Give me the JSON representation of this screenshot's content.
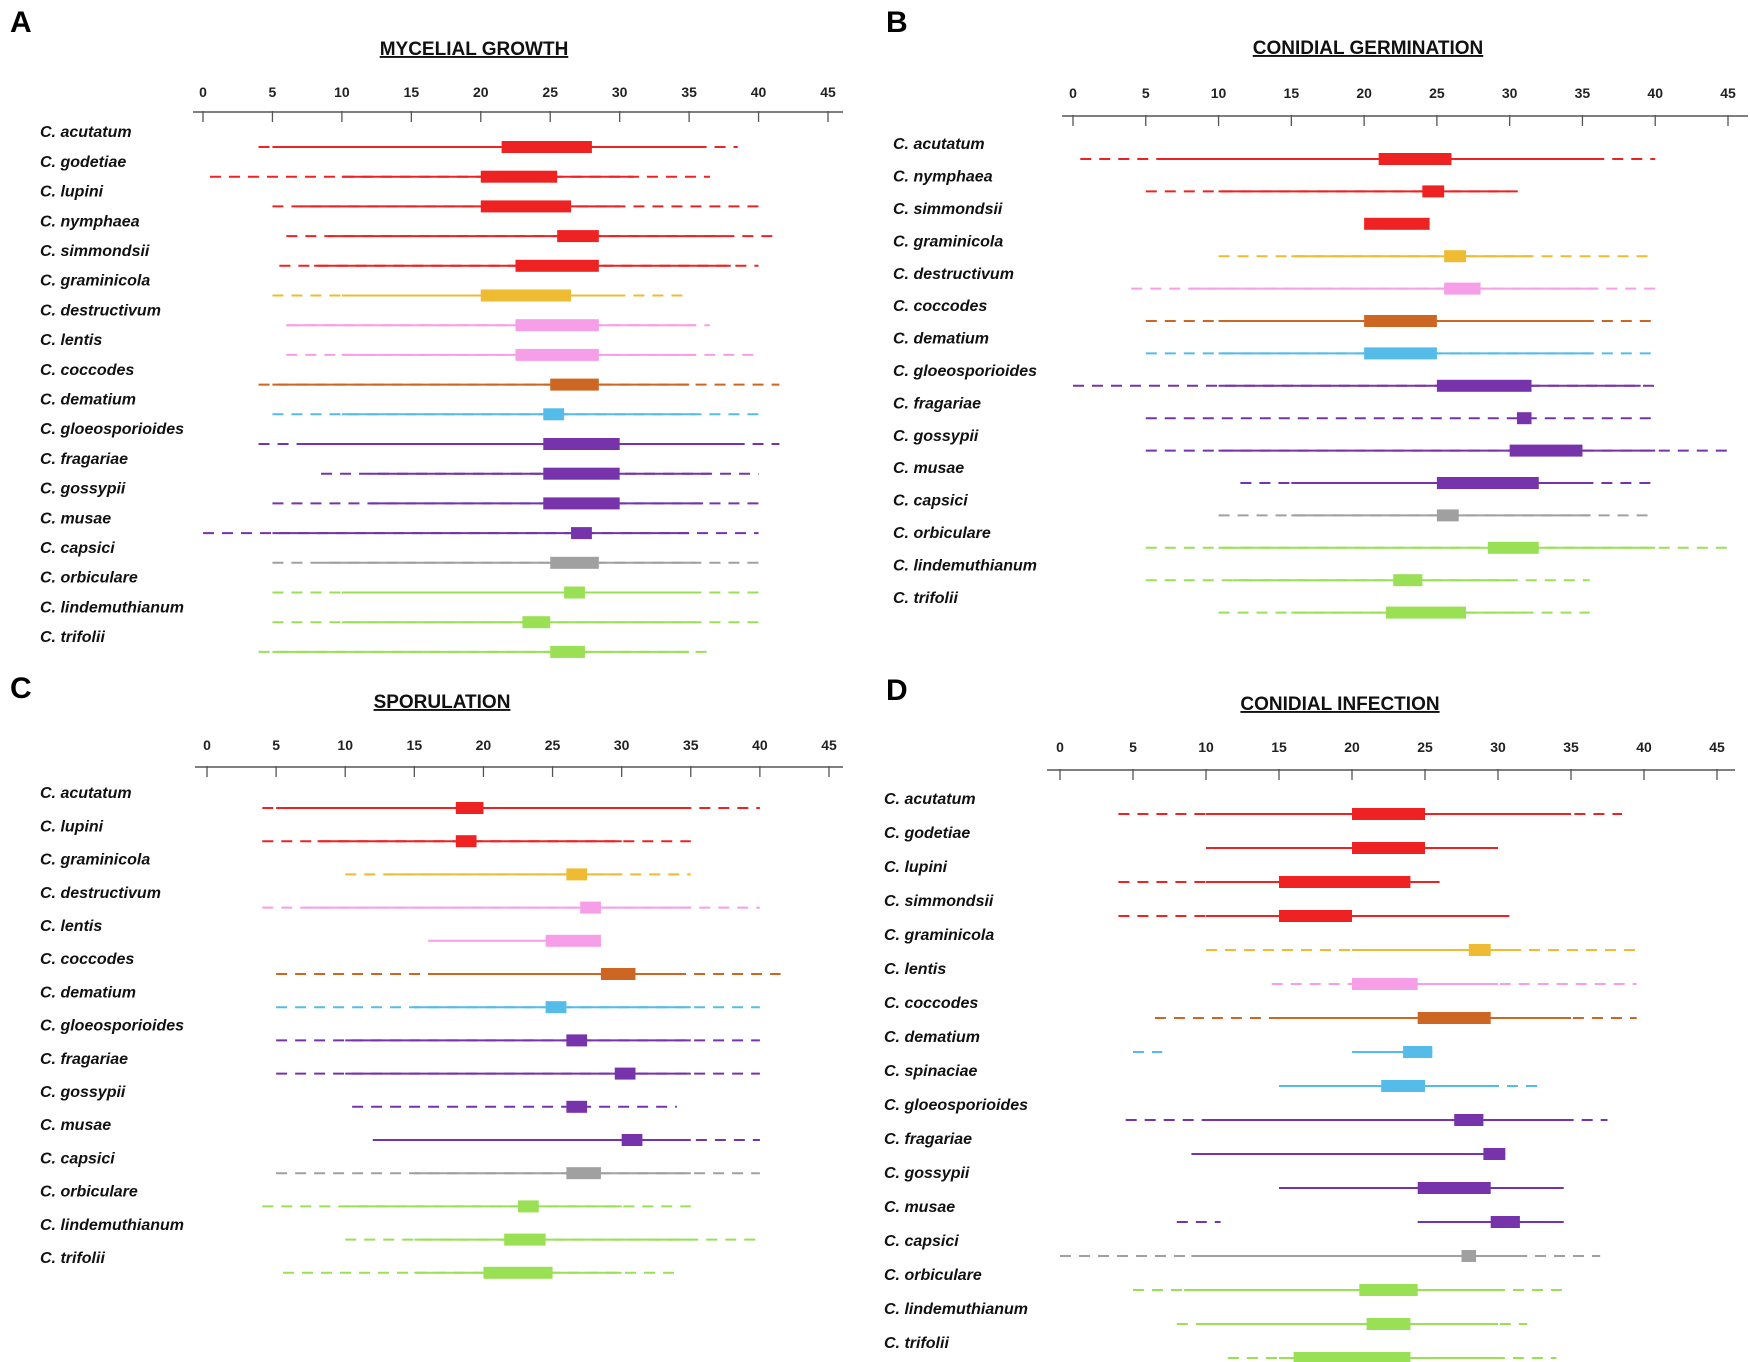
{
  "chart_data": [
    {
      "type": "range",
      "panel": "A",
      "title": "MYCELIAL GROWTH",
      "xlabel": "",
      "ylabel": "",
      "x_ticks": [
        0,
        5,
        10,
        15,
        20,
        25,
        30,
        35,
        40,
        45
      ],
      "xlim": [
        0,
        45
      ],
      "rows": [
        {
          "species": "C. acutatum",
          "color": "#ee2222",
          "dash": [
            4,
            38.5
          ],
          "line": [
            5,
            36
          ],
          "box": [
            21.5,
            28
          ]
        },
        {
          "species": "C. godetiae",
          "color": "#ee2222",
          "dash": [
            0.5,
            36.5
          ],
          "line": [
            10,
            31
          ],
          "box": [
            20,
            25.5
          ]
        },
        {
          "species": "C. lupini",
          "color": "#ee2222",
          "dash": [
            5,
            40
          ],
          "line": [
            7,
            30
          ],
          "box": [
            20,
            26.5
          ]
        },
        {
          "species": "C. nymphaea",
          "color": "#ee2222",
          "dash": [
            6,
            41.5
          ],
          "line": [
            9,
            37.5
          ],
          "box": [
            25.5,
            28.5
          ]
        },
        {
          "species": "C. simmondsii",
          "color": "#ee2222",
          "dash": [
            5.5,
            40
          ],
          "line": [
            8,
            38
          ],
          "box": [
            22.5,
            28.5
          ]
        },
        {
          "species": "C. graminicola",
          "color": "#eebb33",
          "dash": [
            5,
            35
          ],
          "line": [
            10,
            30
          ],
          "box": [
            20,
            26.5
          ]
        },
        {
          "species": "C. destructivum",
          "color": "#f79ee9",
          "dash": [
            6,
            36.5
          ],
          "line": [
            6,
            35.5
          ],
          "box": [
            22.5,
            28.5
          ]
        },
        {
          "species": "C. lentis",
          "color": "#f79ee9",
          "dash": [
            6,
            40
          ],
          "line": [
            10,
            35.5
          ],
          "box": [
            22.5,
            28.5
          ]
        },
        {
          "species": "C. coccodes",
          "color": "#cc6622",
          "dash": [
            4,
            41.5
          ],
          "line": [
            5,
            35
          ],
          "box": [
            25,
            28.5
          ]
        },
        {
          "species": "C. dematium",
          "color": "#55bbe8",
          "dash": [
            5,
            40
          ],
          "line": [
            10,
            35.5
          ],
          "box": [
            24.5,
            26
          ]
        },
        {
          "species": "C. gloeosporioides",
          "color": "#7733aa",
          "dash": [
            4,
            41.5
          ],
          "line": [
            7,
            39
          ],
          "box": [
            24.5,
            30
          ]
        },
        {
          "species": "C. fragariae",
          "color": "#7733aa",
          "dash": [
            8.5,
            40
          ],
          "line": [
            12,
            36.5
          ],
          "box": [
            24.5,
            30
          ]
        },
        {
          "species": "C. gossypii",
          "color": "#7733aa",
          "dash": [
            5,
            40
          ],
          "line": [
            12,
            36
          ],
          "box": [
            24.5,
            30
          ]
        },
        {
          "species": "C. musae",
          "color": "#7733aa",
          "dash": [
            0,
            40
          ],
          "line": [
            5,
            35
          ],
          "box": [
            26.5,
            28
          ]
        },
        {
          "species": "C. capsici",
          "color": "#a0a0a0",
          "dash": [
            5,
            40
          ],
          "line": [
            8.5,
            35.5
          ],
          "box": [
            25,
            28.5
          ]
        },
        {
          "species": "C. orbiculare",
          "color": "#99e055",
          "dash": [
            5,
            40
          ],
          "line": [
            10,
            35.5
          ],
          "box": [
            26,
            27.5
          ]
        },
        {
          "species": "C. lindemuthianum",
          "color": "#99e055",
          "dash": [
            5,
            40
          ],
          "line": [
            10,
            35.5
          ],
          "box": [
            23,
            25
          ]
        },
        {
          "species": "C. trifolii",
          "color": "#99e055",
          "dash": [
            4,
            36.5
          ],
          "line": [
            5,
            35
          ],
          "box": [
            25,
            27.5
          ]
        }
      ]
    },
    {
      "type": "range",
      "panel": "B",
      "title": "CONIDIAL GERMINATION",
      "xlabel": "",
      "ylabel": "",
      "x_ticks": [
        0,
        5,
        10,
        15,
        20,
        25,
        30,
        35,
        40,
        45
      ],
      "xlim": [
        0,
        45
      ],
      "rows": [
        {
          "species": "C. acutatum",
          "color": "#ee2222",
          "dash": [
            0.5,
            40
          ],
          "line": [
            6,
            36
          ],
          "box": [
            21,
            26
          ]
        },
        {
          "species": "C. nymphaea",
          "color": "#ee2222",
          "dash": [
            5,
            31
          ],
          "line": [
            10,
            30
          ],
          "box": [
            24,
            25.5
          ]
        },
        {
          "species": "C. simmondsii",
          "color": "#ee2222",
          "dash": null,
          "line": null,
          "box": [
            20,
            24.5
          ]
        },
        {
          "species": "C. graminicola",
          "color": "#eebb33",
          "dash": [
            10,
            40
          ],
          "line": [
            15,
            31.5
          ],
          "box": [
            25.5,
            27
          ]
        },
        {
          "species": "C. destructivum",
          "color": "#f79ee9",
          "dash": [
            4,
            40
          ],
          "line": [
            8,
            36
          ],
          "box": [
            25.5,
            28
          ]
        },
        {
          "species": "C. coccodes",
          "color": "#cc6622",
          "dash": [
            5,
            40
          ],
          "line": [
            10,
            35.5
          ],
          "box": [
            20,
            25
          ]
        },
        {
          "species": "C. dematium",
          "color": "#55bbe8",
          "dash": [
            5,
            40
          ],
          "line": [
            10,
            35.5
          ],
          "box": [
            20,
            25
          ]
        },
        {
          "species": "C. gloeosporioides",
          "color": "#7733aa",
          "dash": [
            0,
            40
          ],
          "line": [
            10,
            39
          ],
          "box": [
            25,
            31.5
          ]
        },
        {
          "species": "C. fragariae",
          "color": "#7733aa",
          "dash": [
            5,
            40
          ],
          "line": null,
          "box": [
            30.5,
            31.5
          ]
        },
        {
          "species": "C. gossypii",
          "color": "#7733aa",
          "dash": [
            5,
            45
          ],
          "line": [
            10,
            40
          ],
          "box": [
            30,
            35
          ]
        },
        {
          "species": "C. musae",
          "color": "#7733aa",
          "dash": [
            11.5,
            40
          ],
          "line": [
            15,
            35.5
          ],
          "box": [
            25,
            32
          ]
        },
        {
          "species": "C. capsici",
          "color": "#a0a0a0",
          "dash": [
            10,
            40
          ],
          "line": [
            15,
            35.5
          ],
          "box": [
            25,
            26.5
          ]
        },
        {
          "species": "C. orbiculare",
          "color": "#99e055",
          "dash": [
            5,
            45
          ],
          "line": [
            10,
            40
          ],
          "box": [
            28.5,
            32
          ]
        },
        {
          "species": "C. lindemuthianum",
          "color": "#99e055",
          "dash": [
            5,
            35.5
          ],
          "line": [
            11,
            30
          ],
          "box": [
            22,
            24
          ]
        },
        {
          "species": "C. trifolii",
          "color": "#99e055",
          "dash": [
            10,
            35.5
          ],
          "line": [
            15,
            31
          ],
          "box": [
            21.5,
            27
          ]
        }
      ]
    },
    {
      "type": "range",
      "panel": "C",
      "title": "SPORULATION",
      "xlabel": "",
      "ylabel": "",
      "x_ticks": [
        0,
        5,
        10,
        15,
        20,
        25,
        30,
        35,
        40,
        45
      ],
      "xlim": [
        0,
        45
      ],
      "rows": [
        {
          "species": "C. acutatum",
          "color": "#ee2222",
          "dash": [
            4,
            40
          ],
          "line": [
            5,
            35
          ],
          "box": [
            18,
            20
          ]
        },
        {
          "species": "C. lupini",
          "color": "#ee2222",
          "dash": [
            4,
            35
          ],
          "line": [
            8,
            30
          ],
          "box": [
            18,
            19.5
          ]
        },
        {
          "species": "C. graminicola",
          "color": "#eebb33",
          "dash": [
            10,
            35
          ],
          "line": [
            13,
            30
          ],
          "box": [
            26,
            27.5
          ]
        },
        {
          "species": "C. destructivum",
          "color": "#f79ee9",
          "dash": [
            4,
            40
          ],
          "line": [
            7,
            35
          ],
          "box": [
            27,
            28.5
          ]
        },
        {
          "species": "C. lentis",
          "color": "#f79ee9",
          "dash": null,
          "line": [
            16,
            28.5
          ],
          "box": [
            24.5,
            28.5
          ]
        },
        {
          "species": "C. coccodes",
          "color": "#cc6622",
          "dash": [
            5,
            41.5
          ],
          "line": [
            16,
            34
          ],
          "box": [
            28.5,
            31
          ]
        },
        {
          "species": "C. dematium",
          "color": "#55bbe8",
          "dash": [
            5,
            40
          ],
          "line": [
            15,
            35
          ],
          "box": [
            24.5,
            26
          ]
        },
        {
          "species": "C. gloeosporioides",
          "color": "#7733aa",
          "dash": [
            5,
            40
          ],
          "line": [
            10,
            35
          ],
          "box": [
            26,
            27.5
          ]
        },
        {
          "species": "C. fragariae",
          "color": "#7733aa",
          "dash": [
            5,
            40
          ],
          "line": [
            10,
            35
          ],
          "box": [
            29.5,
            31
          ]
        },
        {
          "species": "C. gossypii",
          "color": "#7733aa",
          "dash": [
            10.5,
            34
          ],
          "line": null,
          "box": [
            26,
            27.5
          ]
        },
        {
          "species": "C. musae",
          "color": "#7733aa",
          "dash": [
            12,
            40
          ],
          "line": [
            12,
            35
          ],
          "box": [
            30,
            31.5
          ]
        },
        {
          "species": "C. capsici",
          "color": "#a0a0a0",
          "dash": [
            5,
            40
          ],
          "line": [
            15,
            35
          ],
          "box": [
            26,
            28.5
          ]
        },
        {
          "species": "C. orbiculare",
          "color": "#99e055",
          "dash": [
            4,
            35
          ],
          "line": [
            10,
            30
          ],
          "box": [
            22.5,
            24
          ]
        },
        {
          "species": "C. lindemuthianum",
          "color": "#99e055",
          "dash": [
            10,
            40
          ],
          "line": [
            15,
            35
          ],
          "box": [
            21.5,
            24.5
          ]
        },
        {
          "species": "C. trifolii",
          "color": "#99e055",
          "dash": [
            5.5,
            34
          ],
          "line": [
            15,
            30
          ],
          "box": [
            20,
            25
          ]
        }
      ]
    },
    {
      "type": "range",
      "panel": "D",
      "title": "CONIDIAL INFECTION",
      "xlabel": "",
      "ylabel": "",
      "x_ticks": [
        0,
        5,
        10,
        15,
        20,
        25,
        30,
        35,
        40,
        45
      ],
      "xlim": [
        0,
        45
      ],
      "rows": [
        {
          "species": "C. acutatum",
          "color": "#ee2222",
          "dash": [
            4,
            38.5
          ],
          "line": [
            10,
            35
          ],
          "box": [
            20,
            25
          ]
        },
        {
          "species": "C. godetiae",
          "color": "#ee2222",
          "dash": null,
          "line": [
            10,
            30
          ],
          "box": [
            20,
            25
          ]
        },
        {
          "species": "C. lupini",
          "color": "#ee2222",
          "dash": [
            4,
            26
          ],
          "line": [
            10,
            26
          ],
          "box": [
            15,
            24
          ]
        },
        {
          "species": "C. simmondsii",
          "color": "#ee2222",
          "dash": [
            4,
            31
          ],
          "line": [
            10,
            30.5
          ],
          "box": [
            15,
            20
          ]
        },
        {
          "species": "C. graminicola",
          "color": "#eebb33",
          "dash": [
            10,
            39.5
          ],
          "line": [
            20,
            31
          ],
          "box": [
            28,
            29.5
          ]
        },
        {
          "species": "C. lentis",
          "color": "#f79ee9",
          "dash": [
            14.5,
            39.5
          ],
          "line": [
            20,
            30
          ],
          "box": [
            20,
            24.5
          ]
        },
        {
          "species": "C. coccodes",
          "color": "#cc6622",
          "dash": [
            6.5,
            39.5
          ],
          "line": [
            15,
            35
          ],
          "box": [
            24.5,
            29.5
          ]
        },
        {
          "species": "C. dematium",
          "color": "#55bbe8",
          "dash": [
            5,
            7
          ],
          "line": [
            20,
            25.5
          ],
          "box": [
            23.5,
            25.5
          ]
        },
        {
          "species": "C. spinaciae",
          "color": "#55bbe8",
          "dash": [
            15,
            33
          ],
          "line": [
            15,
            30
          ],
          "box": [
            22,
            25
          ]
        },
        {
          "species": "C. gloeosporioides",
          "color": "#7733aa",
          "dash": [
            4.5,
            37.5
          ],
          "line": [
            10,
            35
          ],
          "box": [
            27,
            29
          ]
        },
        {
          "species": "C. fragariae",
          "color": "#7733aa",
          "dash": null,
          "line": [
            9,
            30.5
          ],
          "box": [
            29,
            30.5
          ]
        },
        {
          "species": "C. gossypii",
          "color": "#7733aa",
          "dash": null,
          "line": [
            15,
            34.5
          ],
          "box": [
            24.5,
            29.5
          ]
        },
        {
          "species": "C. musae",
          "color": "#7733aa",
          "dash": [
            8,
            11
          ],
          "line": [
            24.5,
            34.5
          ],
          "box": [
            29.5,
            31.5
          ]
        },
        {
          "species": "C. capsici",
          "color": "#a0a0a0",
          "dash": [
            0,
            37
          ],
          "line": [
            9,
            32
          ],
          "box": [
            27.5,
            28.5
          ]
        },
        {
          "species": "C. orbiculare",
          "color": "#99e055",
          "dash": [
            5,
            34.5
          ],
          "line": [
            8.5,
            30
          ],
          "box": [
            20.5,
            24.5
          ]
        },
        {
          "species": "C. lindemuthianum",
          "color": "#99e055",
          "dash": [
            8,
            32
          ],
          "line": [
            10,
            30
          ],
          "box": [
            21,
            24
          ]
        },
        {
          "species": "C. trifolii",
          "color": "#99e055",
          "dash": [
            11.5,
            34
          ],
          "line": [
            15,
            30
          ],
          "box": [
            16,
            24
          ]
        }
      ]
    }
  ]
}
